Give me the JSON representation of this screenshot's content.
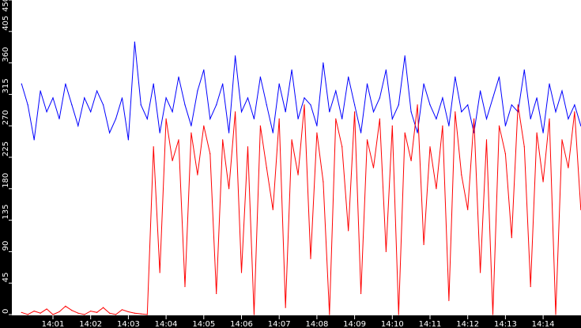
{
  "chart_data": {
    "type": "line",
    "title": "",
    "xlabel": "",
    "ylabel": "",
    "ylim": [
      0,
      450
    ],
    "yticks": [
      "0",
      "45",
      "90",
      "135",
      "180",
      "225",
      "270",
      "315",
      "360",
      "405",
      "450"
    ],
    "xlim": [
      "14:00:05",
      "14:15:00"
    ],
    "xticks": [
      "14:01",
      "14:02",
      "14:03",
      "14:04",
      "14:05",
      "14:06",
      "14:07",
      "14:08",
      "14:09",
      "14:10",
      "14:11",
      "14:12",
      "14:13",
      "14:14"
    ],
    "grid": false,
    "background": "#ffffff",
    "axis_background": "#000000",
    "x": [
      "14:00:10",
      "14:00:20",
      "14:00:30",
      "14:00:40",
      "14:00:50",
      "14:01:00",
      "14:01:10",
      "14:01:20",
      "14:01:30",
      "14:01:40",
      "14:01:50",
      "14:02:00",
      "14:02:10",
      "14:02:20",
      "14:02:30",
      "14:02:40",
      "14:02:50",
      "14:03:00",
      "14:03:10",
      "14:03:20",
      "14:03:30",
      "14:03:40",
      "14:03:50",
      "14:04:00",
      "14:04:10",
      "14:04:20",
      "14:04:30",
      "14:04:40",
      "14:04:50",
      "14:05:00",
      "14:05:10",
      "14:05:20",
      "14:05:30",
      "14:05:40",
      "14:05:50",
      "14:06:00",
      "14:06:10",
      "14:06:20",
      "14:06:30",
      "14:06:40",
      "14:06:50",
      "14:07:00",
      "14:07:10",
      "14:07:20",
      "14:07:30",
      "14:07:40",
      "14:07:50",
      "14:08:00",
      "14:08:10",
      "14:08:20",
      "14:08:30",
      "14:08:40",
      "14:08:50",
      "14:09:00",
      "14:09:10",
      "14:09:20",
      "14:09:30",
      "14:09:40",
      "14:09:50",
      "14:10:00",
      "14:10:10",
      "14:10:20",
      "14:10:30",
      "14:10:40",
      "14:10:50",
      "14:11:00",
      "14:11:10",
      "14:11:20",
      "14:11:30",
      "14:11:40",
      "14:11:50",
      "14:12:00",
      "14:12:10",
      "14:12:20",
      "14:12:30",
      "14:12:40",
      "14:12:50",
      "14:13:00",
      "14:13:10",
      "14:13:20",
      "14:13:30",
      "14:13:40",
      "14:13:50",
      "14:14:00",
      "14:14:10",
      "14:14:20",
      "14:14:30",
      "14:14:40",
      "14:14:50",
      "14:15:00"
    ],
    "series": [
      {
        "color": "#0000ff",
        "values": [
          330,
          300,
          250,
          320,
          290,
          310,
          280,
          330,
          300,
          270,
          310,
          290,
          320,
          300,
          260,
          280,
          310,
          250,
          390,
          300,
          280,
          330,
          260,
          310,
          290,
          340,
          300,
          270,
          320,
          350,
          280,
          300,
          330,
          260,
          370,
          290,
          310,
          280,
          340,
          300,
          260,
          330,
          290,
          350,
          280,
          310,
          300,
          270,
          360,
          290,
          320,
          280,
          340,
          300,
          260,
          330,
          290,
          310,
          350,
          280,
          300,
          370,
          290,
          260,
          330,
          300,
          280,
          310,
          270,
          340,
          290,
          300,
          260,
          320,
          280,
          310,
          340,
          270,
          300,
          290,
          350,
          280,
          310,
          260,
          330,
          290,
          320,
          280,
          300,
          270
        ]
      },
      {
        "color": "#ff0000",
        "values": [
          3,
          0,
          5,
          2,
          8,
          0,
          4,
          12,
          6,
          2,
          0,
          5,
          3,
          10,
          2,
          0,
          7,
          4,
          2,
          1,
          0,
          240,
          60,
          280,
          220,
          250,
          40,
          260,
          200,
          270,
          230,
          30,
          250,
          180,
          290,
          60,
          240,
          0,
          270,
          210,
          150,
          280,
          10,
          250,
          200,
          300,
          80,
          260,
          190,
          0,
          280,
          240,
          120,
          290,
          30,
          250,
          210,
          280,
          90,
          270,
          0,
          260,
          220,
          300,
          100,
          240,
          180,
          270,
          20,
          290,
          200,
          150,
          280,
          60,
          250,
          0,
          270,
          230,
          110,
          300,
          240,
          40,
          260,
          190,
          280,
          0,
          250,
          210,
          290,
          150
        ]
      }
    ]
  }
}
